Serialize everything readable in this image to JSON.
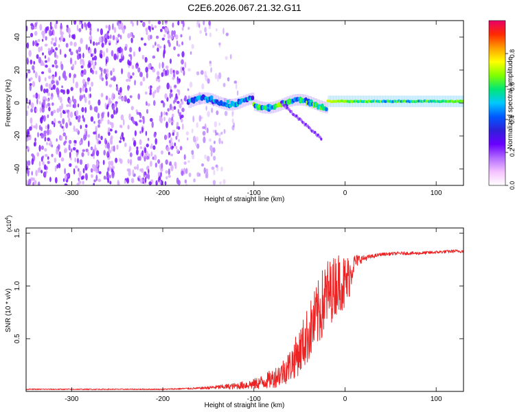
{
  "figure": {
    "title": "C2E6.2026.067.21.32.G11"
  },
  "chart_data": [
    {
      "type": "heatmap",
      "xlabel": "Height of straight line (km)",
      "ylabel": "Frequency (Hz)",
      "xlim": [
        -350,
        130
      ],
      "ylim": [
        -50,
        50
      ],
      "xticks": [
        "-300",
        "-200",
        "-100",
        "0",
        "100"
      ],
      "yticks": [
        "-40",
        "-20",
        "0",
        "20",
        "40"
      ],
      "colorbar": {
        "label": "Normalized spectral amplitude",
        "range": [
          0,
          1
        ],
        "ticks": [
          "0.0",
          "0.2",
          "0.4",
          "0.6",
          "0.8"
        ],
        "colors": [
          "#ffffff",
          "#f5c2ff",
          "#b26bff",
          "#6a00ff",
          "#2f1fd9",
          "#0058ff",
          "#00c8ff",
          "#00e676",
          "#7fff00",
          "#ffff00",
          "#ffa000",
          "#ff2a00",
          "#e8006a"
        ]
      },
      "features": [
        {
          "description_value": "noise",
          "x_range": [
            -350,
            -120
          ],
          "y_range": [
            -50,
            50
          ],
          "amplitude": 0.08
        },
        {
          "description_value": "signal",
          "x_range": [
            -172,
            130
          ],
          "center_frequency": 1,
          "amplitude_range": [
            0.1,
            1.0
          ]
        },
        {
          "description_value": "tail",
          "x_range": [
            -70,
            -25
          ],
          "y_range": [
            -22,
            0
          ]
        }
      ]
    },
    {
      "type": "line",
      "xlabel": "Height of straight line (km)",
      "ylabel": "SNR (10 * v/v)",
      "ylabel_multiplier": "(x10^4)",
      "multiplier_base": "x10",
      "multiplier_exp": "4",
      "xlim": [
        -350,
        130
      ],
      "ylim": [
        0,
        1.55
      ],
      "xticks": [
        "-300",
        "-200",
        "-100",
        "0",
        "100"
      ],
      "yticks": [
        "0.5",
        "1.0",
        "1.5"
      ],
      "series": [
        {
          "color": "#ee2222",
          "x": [
            -350,
            -300,
            -250,
            -200,
            -160,
            -140,
            -120,
            -100,
            -90,
            -80,
            -70,
            -60,
            -50,
            -40,
            -30,
            -25,
            -20,
            -15,
            -10,
            -5,
            0,
            5,
            10,
            15,
            20,
            30,
            40,
            60,
            80,
            100,
            120,
            130
          ],
          "y": [
            0.02,
            0.02,
            0.02,
            0.02,
            0.03,
            0.04,
            0.05,
            0.07,
            0.09,
            0.12,
            0.17,
            0.25,
            0.38,
            0.55,
            0.72,
            0.82,
            0.92,
            0.95,
            1.02,
            1.05,
            1.0,
            1.1,
            1.22,
            1.25,
            1.26,
            1.28,
            1.3,
            1.31,
            1.31,
            1.32,
            1.33,
            1.33
          ],
          "noise_amplitude": [
            0.005,
            0.005,
            0.005,
            0.005,
            0.01,
            0.02,
            0.03,
            0.05,
            0.07,
            0.09,
            0.12,
            0.16,
            0.22,
            0.28,
            0.32,
            0.34,
            0.35,
            0.3,
            0.3,
            0.28,
            0.3,
            0.2,
            0.08,
            0.05,
            0.03,
            0.02,
            0.015,
            0.015,
            0.015,
            0.015,
            0.015,
            0.015
          ]
        }
      ]
    }
  ]
}
